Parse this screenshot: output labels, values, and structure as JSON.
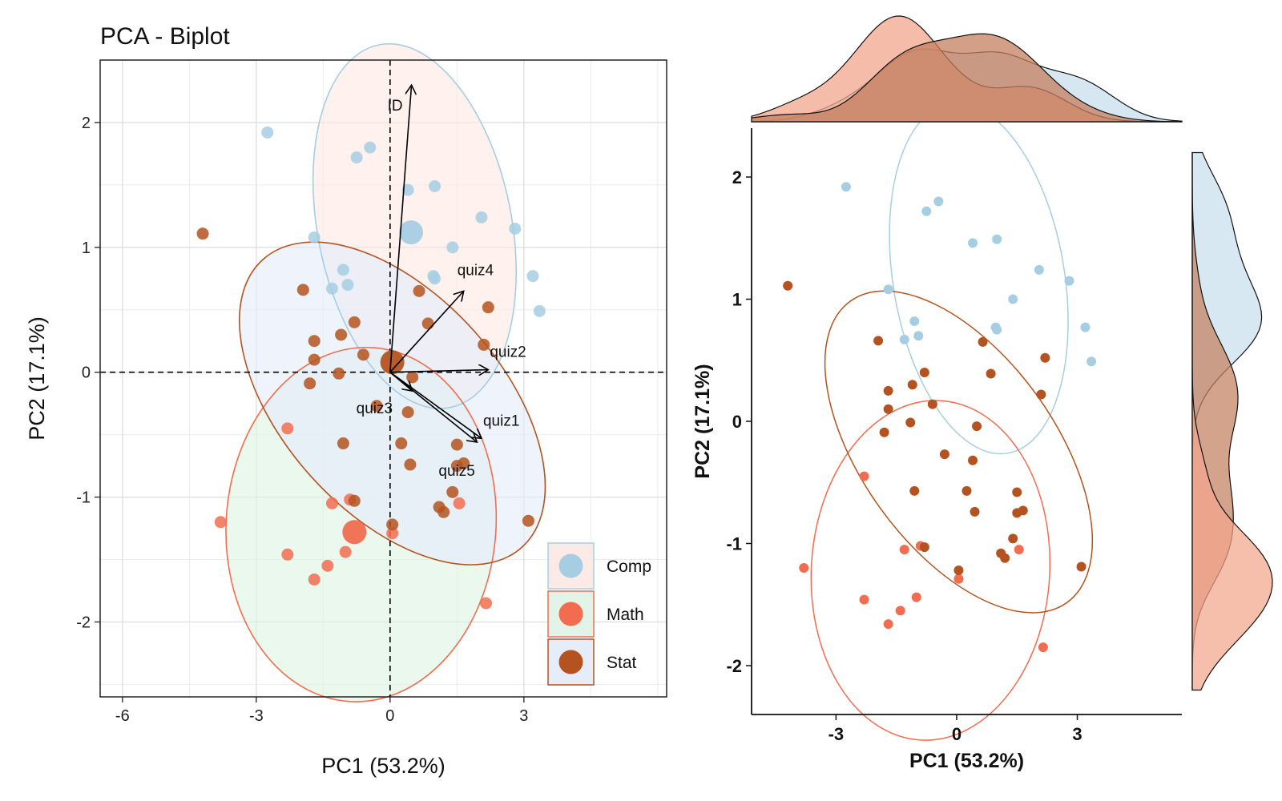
{
  "chart_data": [
    {
      "type": "scatter",
      "subtype": "pca-biplot",
      "title": "PCA - Biplot",
      "xlabel": "PC1 (53.2%)",
      "ylabel": "PC2 (17.1%)",
      "xlim": [
        -6.5,
        6.2
      ],
      "ylim": [
        -2.6,
        2.5
      ],
      "xticks": [
        -6,
        -3,
        0,
        3
      ],
      "xtick_labels": [
        "-6",
        "-3",
        "0",
        "3"
      ],
      "yticks": [
        2,
        1,
        0,
        -1,
        -2
      ],
      "ytick_labels": [
        "2",
        "1",
        "0",
        "-1",
        "-2"
      ],
      "grid": true,
      "legend_position": "bottom-right",
      "colors": {
        "Comp": "#a6cee3",
        "Math": "#f26d4f",
        "Stat": "#b4531f"
      },
      "ellipse_fills": {
        "Comp": "#fde8e4",
        "Math": "#dff3e4",
        "Stat": "#e3ebfa"
      },
      "series": [
        {
          "name": "Comp",
          "centroid": [
            0.47,
            1.12
          ],
          "ellipse": {
            "cx": 0.55,
            "cy": 1.17,
            "rx": 4.35,
            "ry": 1.48,
            "angle": -11
          },
          "points": [
            [
              -2.75,
              1.92
            ],
            [
              -0.75,
              1.72
            ],
            [
              -0.45,
              1.8
            ],
            [
              0.4,
              1.46
            ],
            [
              1.0,
              1.49
            ],
            [
              2.05,
              1.24
            ],
            [
              2.8,
              1.15
            ],
            [
              -1.7,
              1.08
            ],
            [
              1.4,
              1.0
            ],
            [
              -1.05,
              0.82
            ],
            [
              -1.3,
              0.67
            ],
            [
              -0.95,
              0.7
            ],
            [
              1.0,
              0.75
            ],
            [
              0.97,
              0.77
            ],
            [
              3.2,
              0.77
            ],
            [
              3.35,
              0.49
            ]
          ]
        },
        {
          "name": "Math",
          "centroid": [
            -0.8,
            -1.28
          ],
          "ellipse": {
            "cx": -0.65,
            "cy": -1.22,
            "rx": 6.05,
            "ry": 1.42,
            "angle": 4
          },
          "points": [
            [
              -3.8,
              -1.2
            ],
            [
              -2.3,
              -1.46
            ],
            [
              -1.7,
              -1.66
            ],
            [
              -1.4,
              -1.55
            ],
            [
              -1.0,
              -1.44
            ],
            [
              -1.3,
              -1.05
            ],
            [
              -0.9,
              -1.02
            ],
            [
              0.05,
              -1.29
            ],
            [
              1.55,
              -1.05
            ],
            [
              2.15,
              -1.85
            ],
            [
              -2.3,
              -0.45
            ]
          ]
        },
        {
          "name": "Stat",
          "centroid": [
            0.05,
            0.08
          ],
          "ellipse": {
            "cx": 0.05,
            "cy": -0.25,
            "rx": 4.9,
            "ry": 1.55,
            "angle": -42
          },
          "points": [
            [
              -4.2,
              1.11
            ],
            [
              -1.95,
              0.66
            ],
            [
              -1.7,
              0.25
            ],
            [
              -1.1,
              0.3
            ],
            [
              -0.8,
              0.4
            ],
            [
              -0.6,
              0.14
            ],
            [
              -1.7,
              0.1
            ],
            [
              -1.8,
              -0.09
            ],
            [
              -1.15,
              -0.01
            ],
            [
              0.65,
              0.65
            ],
            [
              0.85,
              0.39
            ],
            [
              2.2,
              0.52
            ],
            [
              2.1,
              0.22
            ],
            [
              0.5,
              -0.04
            ],
            [
              0.25,
              -0.57
            ],
            [
              1.5,
              -0.75
            ],
            [
              0.45,
              -0.74
            ],
            [
              1.4,
              -0.96
            ],
            [
              0.05,
              -1.22
            ],
            [
              1.2,
              -1.12
            ],
            [
              1.1,
              -1.08
            ],
            [
              1.5,
              -0.58
            ],
            [
              1.65,
              -0.73
            ],
            [
              3.1,
              -1.19
            ],
            [
              -1.05,
              -0.57
            ],
            [
              -0.8,
              -1.03
            ],
            [
              0.4,
              -0.32
            ],
            [
              -0.3,
              -0.27
            ]
          ]
        }
      ],
      "arrows": [
        {
          "name": "ID",
          "x": 0.48,
          "y": 2.3
        },
        {
          "name": "quiz4",
          "x": 1.65,
          "y": 0.65
        },
        {
          "name": "quiz2",
          "x": 2.2,
          "y": 0.02
        },
        {
          "name": "quiz3",
          "x": 0.5,
          "y": -0.15
        },
        {
          "name": "quiz1",
          "x": 2.05,
          "y": -0.53
        },
        {
          "name": "quiz5",
          "x": 1.95,
          "y": -0.56
        }
      ]
    },
    {
      "type": "scatter",
      "subtype": "scatter-with-marginal-densities",
      "title": "",
      "xlabel": "PC1 (53.2%)",
      "ylabel": "PC2 (17.1%)",
      "xlim": [
        -5.1,
        5.6
      ],
      "ylim": [
        -2.4,
        2.4
      ],
      "xticks": [
        -3,
        0,
        3
      ],
      "xtick_labels": [
        "-3",
        "0",
        "3"
      ],
      "yticks": [
        2,
        1,
        0,
        -1,
        -2
      ],
      "ytick_labels": [
        "2",
        "1",
        "0",
        "-1",
        "-2"
      ],
      "grid": false,
      "marginal_density": {
        "top": "PC1 by group",
        "right": "PC2 by group"
      },
      "series_ref": "same points and ellipses as biplot"
    }
  ]
}
